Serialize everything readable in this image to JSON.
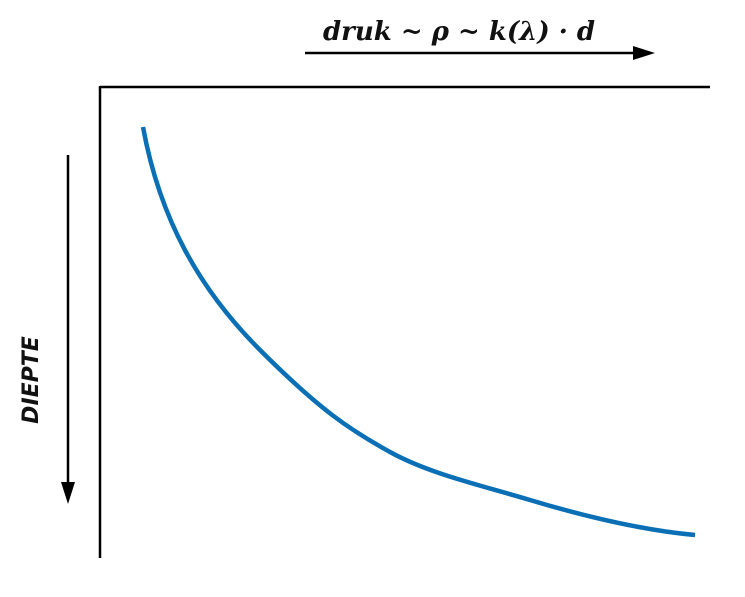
{
  "x_axis_label": "druk ~ ρ ~ k(λ) · d",
  "y_axis_label": "DIEPTE",
  "colors": {
    "curve": "#0a6fb5",
    "axis": "#000000",
    "text": "#111111"
  }
}
